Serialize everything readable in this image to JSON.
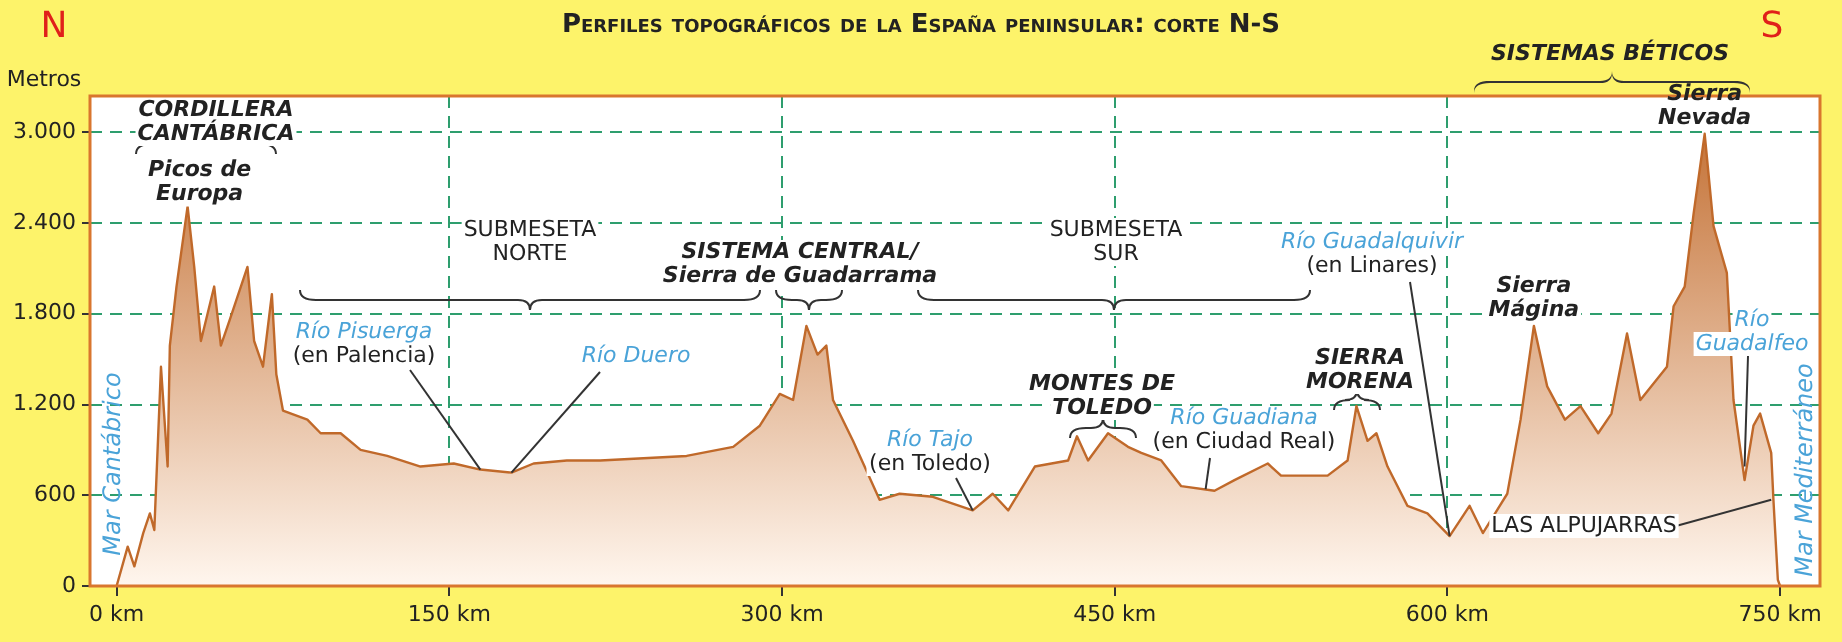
{
  "chart_data": {
    "type": "area",
    "title": "Perfiles topográficos de la España peninsular: corte N-S",
    "ylabel": "Metros",
    "x": [
      0,
      5,
      8,
      12,
      15,
      17,
      20,
      23,
      24,
      27,
      32,
      35,
      38,
      41,
      44,
      47,
      51,
      59,
      62,
      66,
      70,
      72,
      75,
      86,
      92,
      101,
      110,
      122,
      137,
      152,
      164,
      178,
      188,
      203,
      218,
      257,
      278,
      290,
      299,
      305,
      311,
      316,
      320,
      323,
      332,
      344,
      353,
      368,
      386,
      395,
      402,
      414,
      429,
      433,
      438,
      447,
      456,
      462,
      471,
      480,
      495,
      504,
      519,
      525,
      546,
      555,
      559,
      564,
      568,
      573,
      582,
      591,
      601,
      606,
      610,
      616,
      627,
      633,
      639,
      645,
      653,
      660,
      668,
      674,
      681,
      687,
      699,
      702,
      707,
      711,
      716,
      720,
      726,
      729,
      734,
      738,
      741,
      746,
      747,
      749,
      750
    ],
    "series": [
      {
        "color": "#c0692a",
        "values": [
          0,
          260,
          130,
          350,
          480,
          370,
          1450,
          790,
          1590,
          1980,
          2510,
          2110,
          1620,
          1800,
          1980,
          1590,
          1760,
          2110,
          1620,
          1450,
          1930,
          1400,
          1160,
          1100,
          1010,
          1010,
          900,
          860,
          790,
          810,
          770,
          750,
          810,
          830,
          830,
          860,
          920,
          1060,
          1270,
          1230,
          1720,
          1530,
          1590,
          1230,
          960,
          570,
          610,
          590,
          500,
          610,
          500,
          790,
          830,
          990,
          830,
          1010,
          920,
          880,
          830,
          660,
          630,
          700,
          810,
          730,
          730,
          830,
          1190,
          960,
          1010,
          790,
          530,
          480,
          330,
          440,
          530,
          350,
          610,
          1100,
          1720,
          1320,
          1100,
          1190,
          1010,
          1140,
          1670,
          1230,
          1450,
          1850,
          1980,
          2460,
          2990,
          2380,
          2070,
          1230,
          700,
          1060,
          1140,
          880,
          570,
          40,
          0
        ]
      }
    ],
    "xlim": [
      -12,
      768
    ],
    "ylim": [
      0,
      3240
    ],
    "xticks": [
      {
        "value": 0,
        "label": "0 km"
      },
      {
        "value": 150,
        "label": "150 km"
      },
      {
        "value": 300,
        "label": "300 km"
      },
      {
        "value": 450,
        "label": "450 km"
      },
      {
        "value": 600,
        "label": "600 km"
      },
      {
        "value": 750,
        "label": "750 km"
      }
    ],
    "yticks": [
      0,
      600,
      {
        "value": 1200,
        "label": "1.200"
      },
      {
        "value": 1800,
        "label": "1.800"
      },
      {
        "value": 2400,
        "label": "2.400"
      },
      {
        "value": 3000,
        "label": "3.000"
      }
    ],
    "grid": true,
    "legend": false,
    "annotations": [
      "N",
      "S",
      "CORDILLERA\nCANTÁBRICA",
      {
        "text": "Picos de\nEuropa",
        "x": 32,
        "y": 2510
      },
      "SUBMESETA\nNORTE",
      {
        "text": "Río Pisuerga\n(en Palencia)",
        "x": 164,
        "y": 770
      },
      {
        "text": "Río Duero",
        "x": 178,
        "y": 750
      },
      "SISTEMA CENTRAL/\nSierra de Guadarrama",
      "SUBMESETA\nSUR",
      {
        "text": "Río Tajo\n(en Toledo)",
        "x": 386,
        "y": 500
      },
      "MONTES DE\nTOLEDO",
      {
        "text": "Río Guadiana\n(en Ciudad Real)",
        "x": 491,
        "y": 640
      },
      "SIERRA\nMORENA",
      {
        "text": "Río Guadalquivir\n(en Linares)",
        "x": 601,
        "y": 330
      },
      "SISTEMAS BÉTICOS",
      {
        "text": "Sierra\nMágina",
        "x": 639,
        "y": 1720
      },
      {
        "text": "Sierra\nNevada",
        "x": 716,
        "y": 2990
      },
      {
        "text": "Río\nGuadalfeo",
        "x": 734,
        "y": 790
      },
      {
        "text": "LAS ALPUJARRAS",
        "x": 746,
        "y": 570
      },
      "Mar Cantábrico",
      "Mar Mediterráneo"
    ]
  }
}
